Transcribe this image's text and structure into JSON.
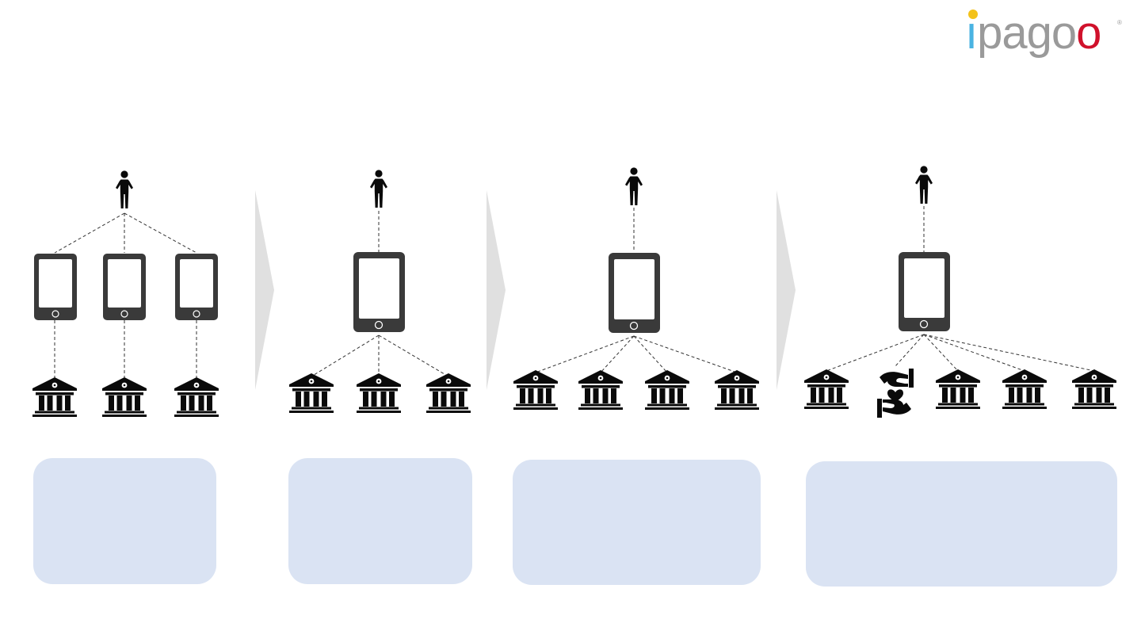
{
  "logo": {
    "text": "ipagoo",
    "dot_color": "#f3c21a",
    "accent_color": "#4ab3e2",
    "o_color": "#d0112b",
    "registered": "®"
  },
  "colors": {
    "icon": "#0a0a0a",
    "phone": "#3a3a3a",
    "phone_screen": "#ffffff",
    "arrow": "#e0e0e0",
    "panel": "#dae3f3",
    "connector": "#333333"
  },
  "stages": [
    {
      "id": "stage-1",
      "users": 1,
      "apps": 3,
      "bank_links": "one-per-app",
      "nodes": [
        "bank",
        "bank",
        "bank"
      ]
    },
    {
      "id": "stage-2",
      "users": 1,
      "apps": 1,
      "bank_links": "all-from-app",
      "nodes": [
        "bank",
        "bank",
        "bank"
      ]
    },
    {
      "id": "stage-3",
      "users": 1,
      "apps": 1,
      "bank_links": "all-from-app",
      "nodes": [
        "bank",
        "bank",
        "bank",
        "bank"
      ]
    },
    {
      "id": "stage-4",
      "users": 1,
      "apps": 1,
      "bank_links": "all-from-app",
      "nodes": [
        "bank",
        "care-hands",
        "bank",
        "bank",
        "bank"
      ]
    }
  ]
}
